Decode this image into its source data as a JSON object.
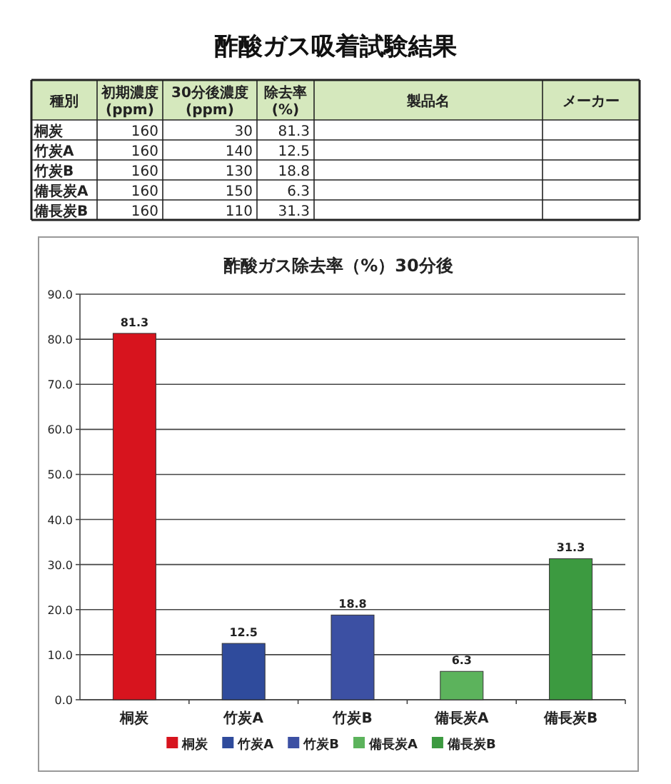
{
  "chart_data": {
    "type": "bar",
    "title": "酢酸ガス吸着試験結果",
    "subtitle": "酢酸ガス除去率（%）30分後",
    "categories": [
      "桐炭",
      "竹炭A",
      "竹炭B",
      "備長炭A",
      "備長炭B"
    ],
    "series": [
      {
        "name": "桐炭",
        "color": "#d7141e",
        "values": [
          81.3,
          null,
          null,
          null,
          null
        ]
      },
      {
        "name": "竹炭A",
        "color": "#2f4b9c",
        "values": [
          null,
          12.5,
          null,
          null,
          null
        ]
      },
      {
        "name": "竹炭B",
        "color": "#3c50a3",
        "values": [
          null,
          null,
          18.8,
          null,
          null
        ]
      },
      {
        "name": "備長炭A",
        "color": "#5cb35c",
        "values": [
          null,
          null,
          null,
          6.3,
          null
        ]
      },
      {
        "name": "備長炭B",
        "color": "#3c9a40",
        "values": [
          null,
          null,
          null,
          null,
          31.3
        ]
      }
    ],
    "ylim": [
      0,
      90
    ],
    "yticks": [
      {
        "value": 0,
        "label": "0.0"
      },
      {
        "value": 10,
        "label": "10.0"
      },
      {
        "value": 20,
        "label": "20.0"
      },
      {
        "value": 30,
        "label": "30.0"
      },
      {
        "value": 40,
        "label": "40.0"
      },
      {
        "value": 50,
        "label": "50.0"
      },
      {
        "value": 60,
        "label": "60.0"
      },
      {
        "value": 70,
        "label": "70.0"
      },
      {
        "value": 80,
        "label": "80.0"
      },
      {
        "value": 90,
        "label": "90.0"
      }
    ],
    "grid": "y",
    "legend": "bottom",
    "data_labels": true,
    "annotations": [
      "種別",
      "初期濃度",
      "(ppm)",
      "30分後濃度",
      "(ppm)",
      "除去率",
      "(%)",
      "製品名",
      "メーカー",
      "160",
      "30",
      "81.3",
      "160",
      "140",
      "12.5",
      "160",
      "130",
      "18.8",
      "160",
      "150",
      "6.3",
      "160",
      "110",
      "31.3"
    ]
  }
}
